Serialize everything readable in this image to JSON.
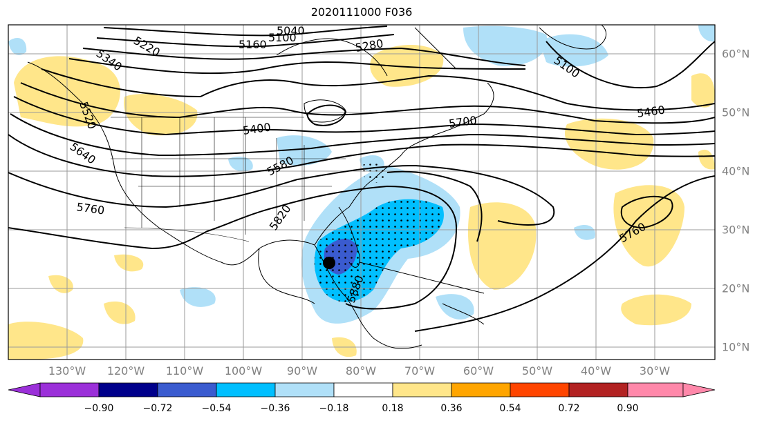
{
  "title": "2020111000 F036",
  "map": {
    "projection": "Mercator",
    "lon_range": [
      -143,
      -17
    ],
    "lat_range": [
      8,
      66
    ],
    "longitude_labels": [
      "130°W",
      "120°W",
      "110°W",
      "100°W",
      "90°W",
      "80°W",
      "70°W",
      "60°W",
      "50°W",
      "40°W",
      "30°W"
    ],
    "latitude_labels": [
      "60°N",
      "50°N",
      "40°N",
      "30°N",
      "20°N",
      "10°N"
    ],
    "gridlines": true,
    "contour_labels": [
      "5040",
      "5100",
      "5160",
      "5220",
      "5280",
      "5100",
      "5340",
      "5400",
      "5460",
      "5520",
      "5580",
      "5640",
      "5700",
      "5760",
      "5820",
      "5760",
      "5880"
    ],
    "storm_center_marker": {
      "lon": -83.5,
      "lat": 24.5
    }
  },
  "colorbar": {
    "ticks": [
      "−0.90",
      "−0.72",
      "−0.54",
      "−0.36",
      "−0.18",
      "0.18",
      "0.36",
      "0.54",
      "0.72",
      "0.90"
    ],
    "colors": [
      "#9b30d9",
      "#00008b",
      "#3a5bcf",
      "#00bfff",
      "#b0e0f8",
      "#ffffff",
      "#ffe68a",
      "#ffa500",
      "#ff4500",
      "#b22222",
      "#ff88aa"
    ]
  }
}
